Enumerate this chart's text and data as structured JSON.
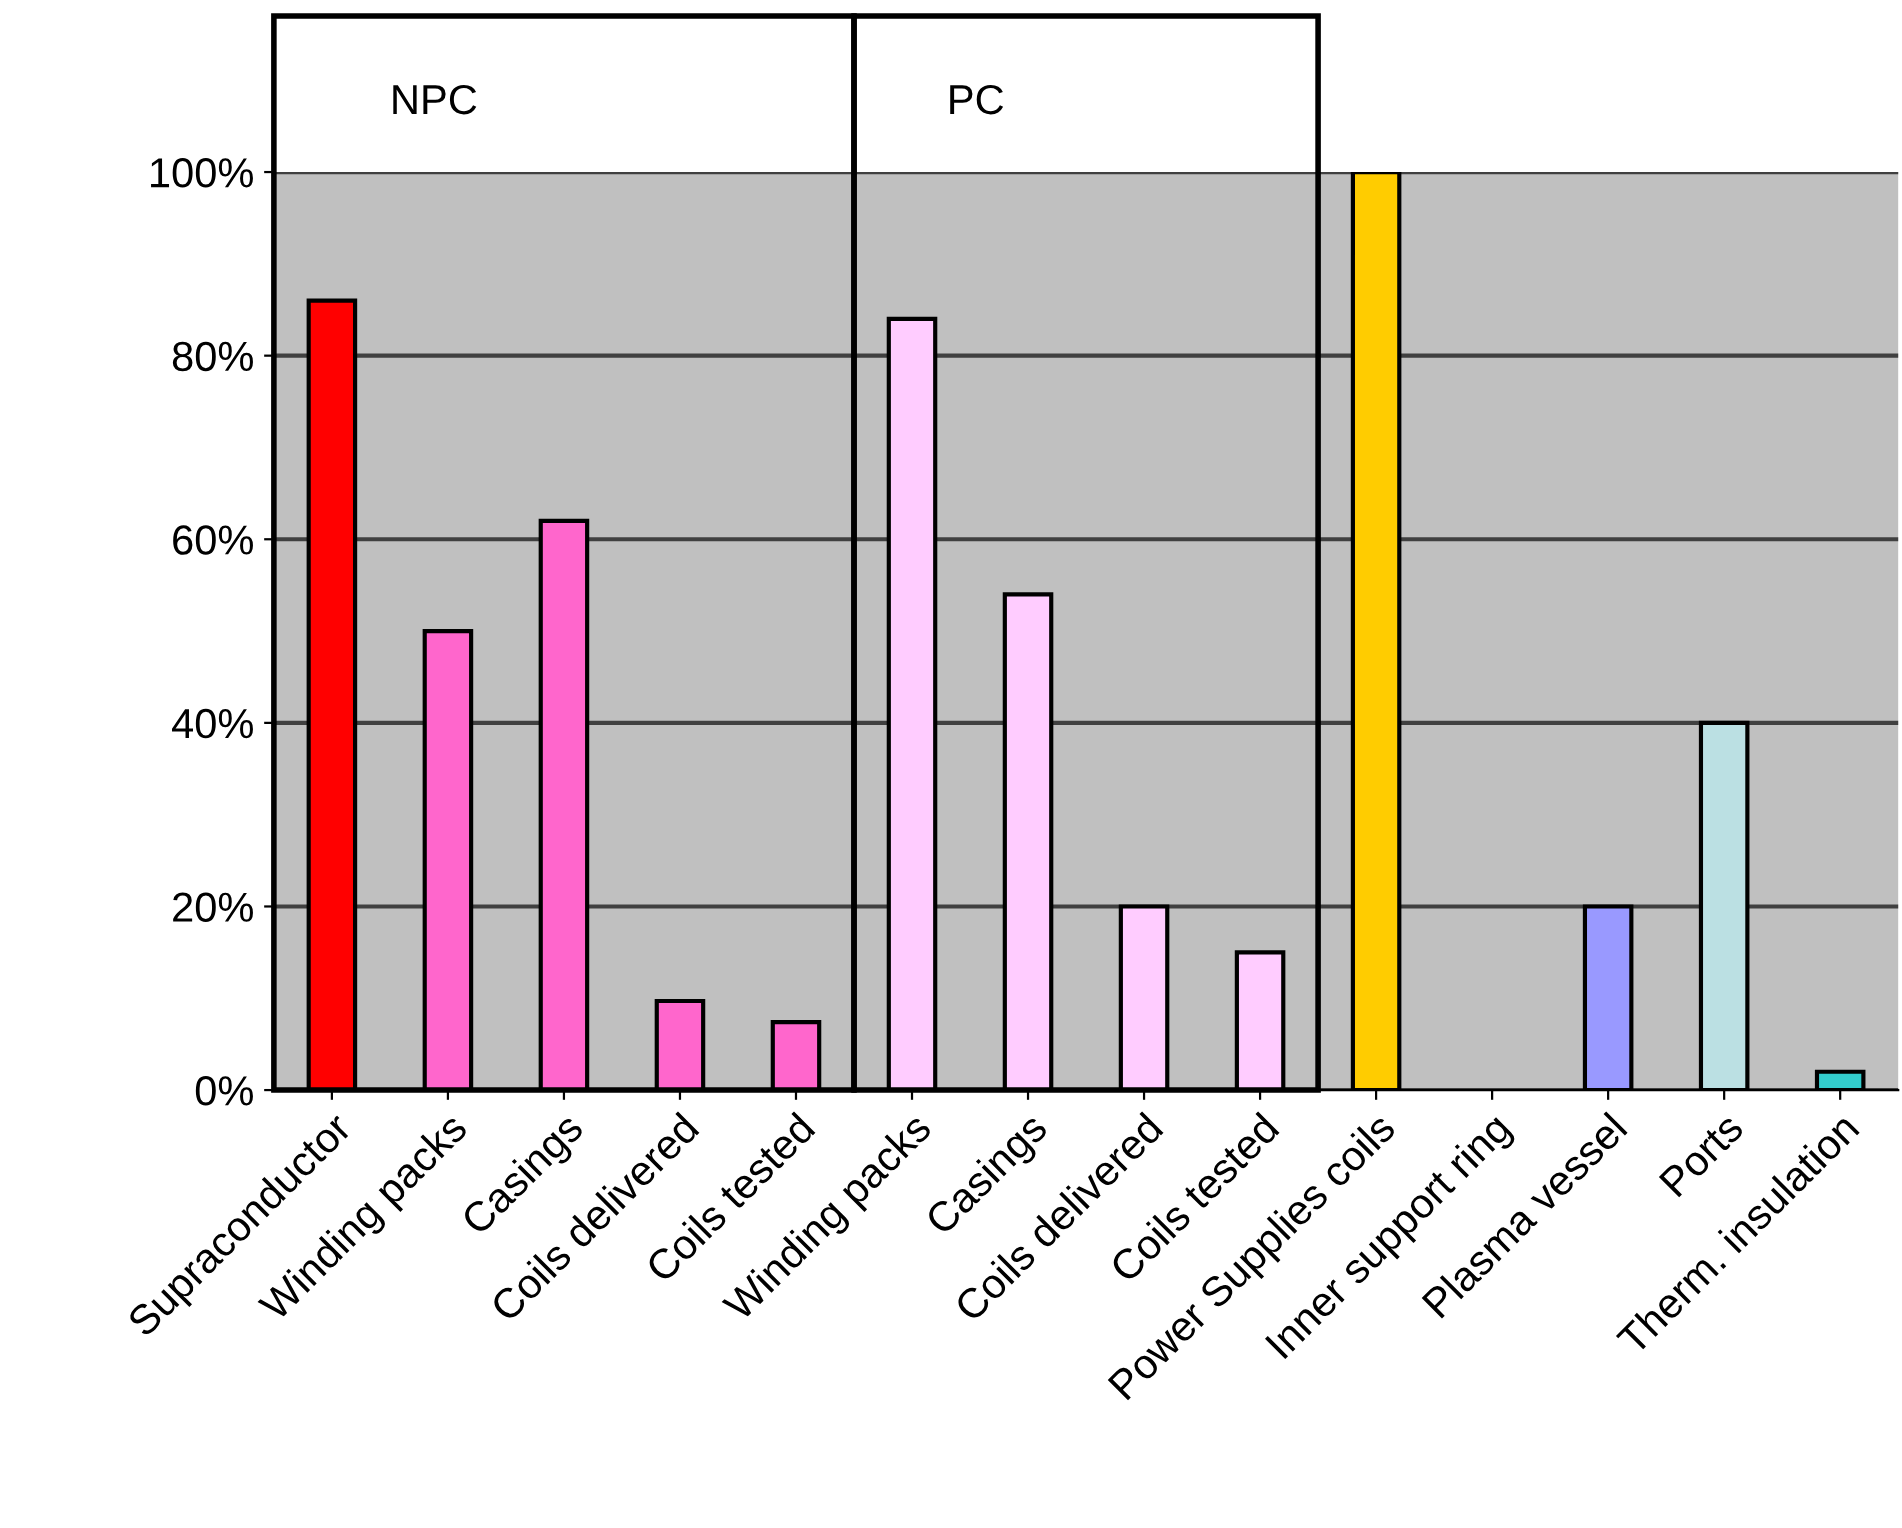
{
  "chart_data": {
    "type": "bar",
    "categories": [
      "Supraconductor",
      "Winding packs",
      "Casings",
      "Coils delivered",
      "Coils tested",
      "Winding packs",
      "Casings",
      "Coils delivered",
      "Coils tested",
      "Power Supplies coils",
      "Inner support ring",
      "Plasma vessel",
      "Ports",
      "Therm. insulation"
    ],
    "values": [
      86,
      50,
      62,
      9.7,
      7.4,
      84,
      54,
      20,
      15,
      100,
      null,
      20,
      40,
      2
    ],
    "colors": [
      "#ff0000",
      "#ff66cc",
      "#ff66cc",
      "#ff66cc",
      "#ff66cc",
      "#ffccff",
      "#ffccff",
      "#ffccff",
      "#ffccff",
      "#ffcc00",
      null,
      "#9999ff",
      "#bbe0e3",
      "#33cccc"
    ],
    "ylim": [
      0,
      100
    ],
    "yticks": [
      {
        "value": 0,
        "label": "0%"
      },
      {
        "value": 20,
        "label": "20%"
      },
      {
        "value": 40,
        "label": "40%"
      },
      {
        "value": 60,
        "label": "60%"
      },
      {
        "value": 80,
        "label": "80%"
      },
      {
        "value": 100,
        "label": "100%"
      }
    ],
    "grid": "y",
    "annotations": [
      "NPC",
      "PC"
    ]
  }
}
